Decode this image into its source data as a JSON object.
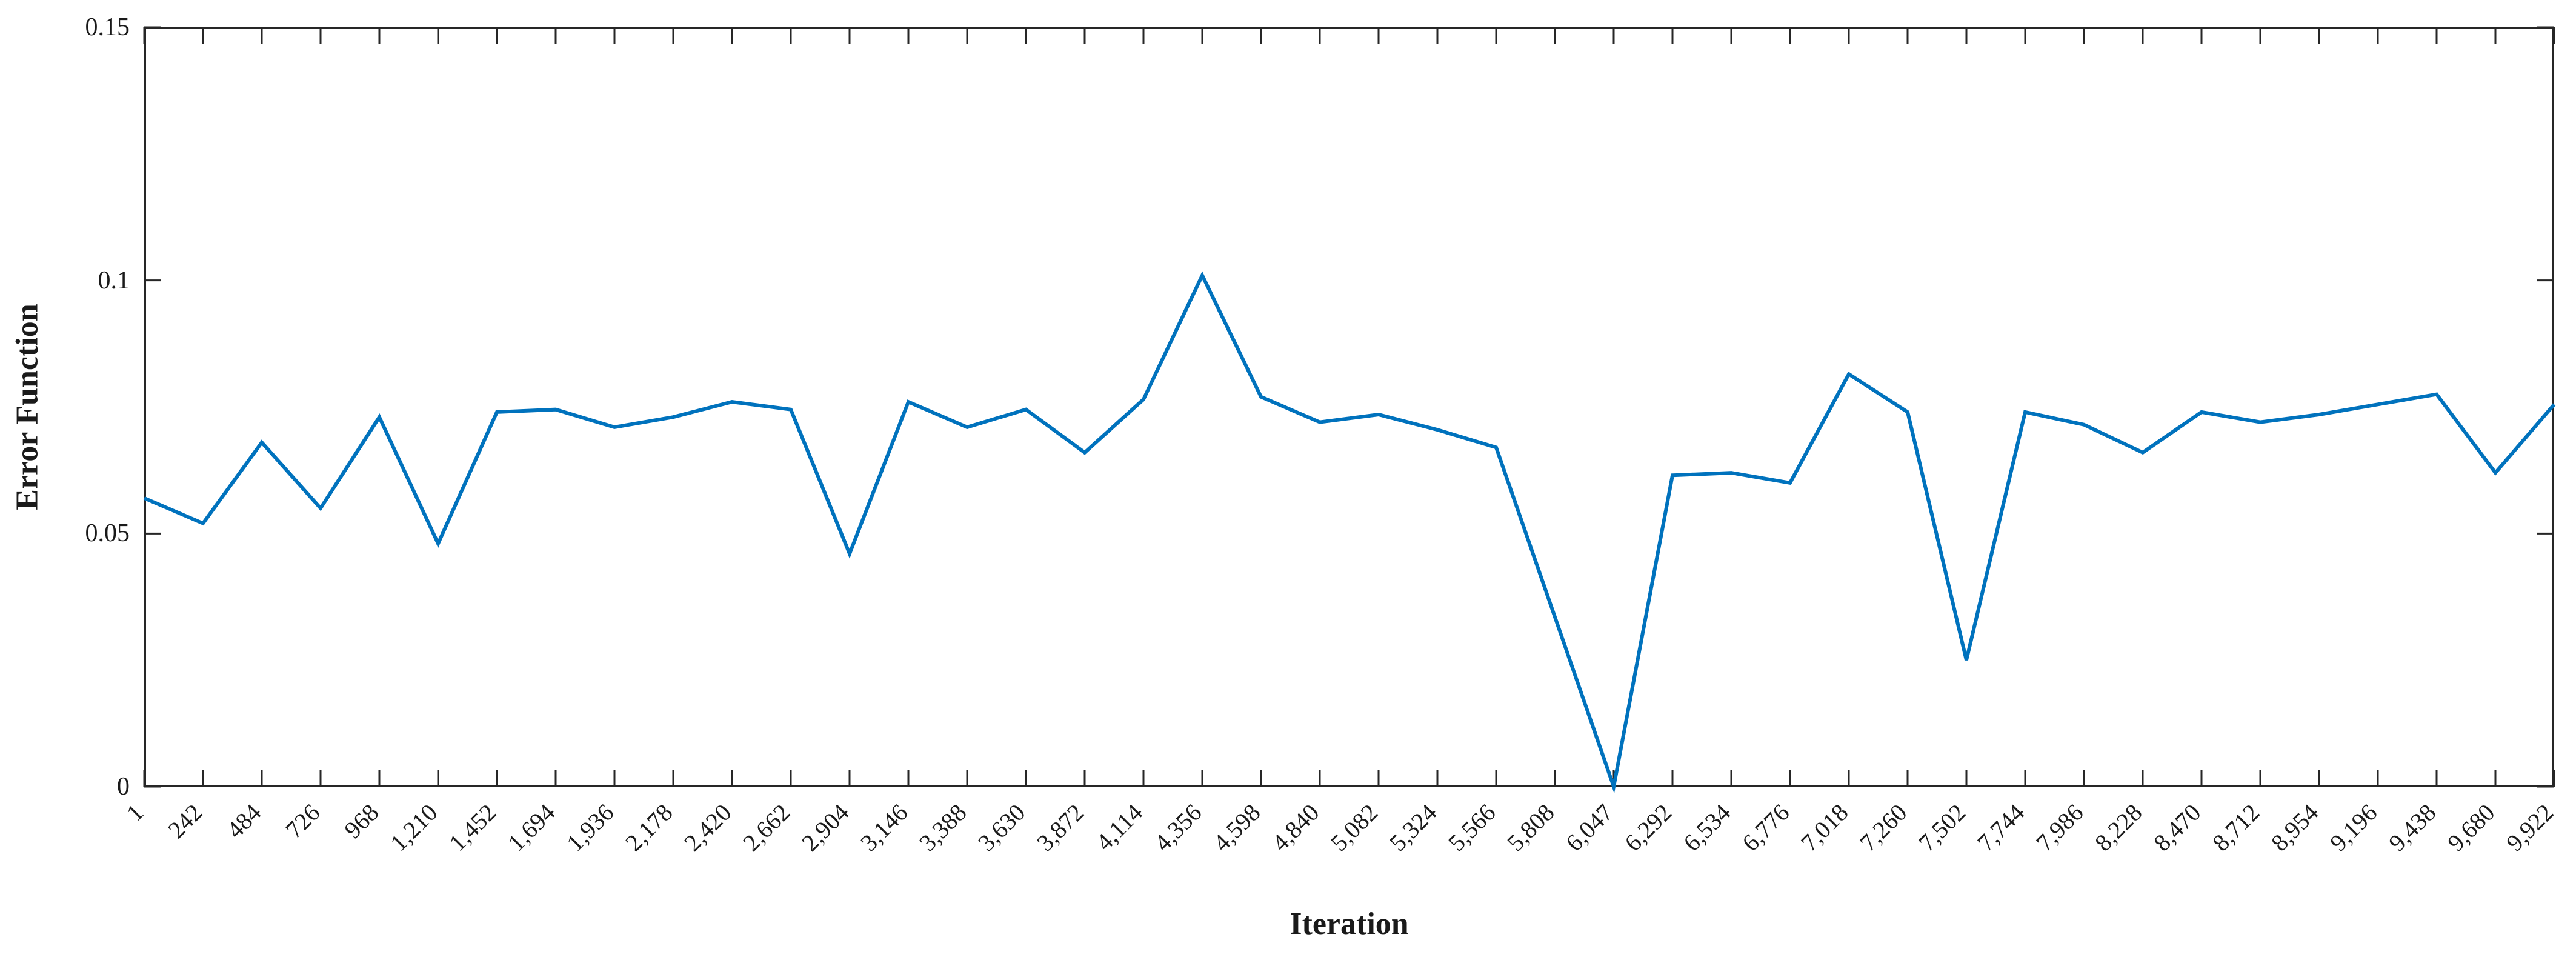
{
  "chart_data": {
    "type": "line",
    "title": "",
    "xlabel": "Iteration",
    "ylabel": "Error Function",
    "categories": [
      "1",
      "242",
      "484",
      "726",
      "968",
      "1,210",
      "1,452",
      "1,694",
      "1,936",
      "2,178",
      "2,420",
      "2,662",
      "2,904",
      "3,146",
      "3,388",
      "3,630",
      "3,872",
      "4,114",
      "4,356",
      "4,598",
      "4,840",
      "5,082",
      "5,324",
      "5,566",
      "5,808",
      "6,047",
      "6,292",
      "6,534",
      "6,776",
      "7,018",
      "7,260",
      "7,502",
      "7,744",
      "7,986",
      "8,228",
      "8,470",
      "8,712",
      "8,954",
      "9,196",
      "9,438",
      "9,680",
      "9,922"
    ],
    "values": [
      0.057,
      0.052,
      0.068,
      0.055,
      0.073,
      0.048,
      0.074,
      0.0745,
      0.071,
      0.073,
      0.076,
      0.0745,
      0.046,
      0.076,
      0.071,
      0.0745,
      0.066,
      0.0765,
      0.101,
      0.077,
      0.072,
      0.0735,
      0.0705,
      0.067,
      0.0335,
      0.0,
      0.0615,
      0.062,
      0.06,
      0.0815,
      0.074,
      0.025,
      0.074,
      0.0715,
      0.066,
      0.074,
      0.072,
      0.0735,
      0.0755,
      0.0775,
      0.062,
      0.0755
    ],
    "ylim": [
      0,
      0.15
    ],
    "yticks": [
      {
        "value": 0,
        "label": "0"
      },
      {
        "value": 0.05,
        "label": "0.05"
      },
      {
        "value": 0.1,
        "label": "0.1"
      },
      {
        "value": 0.15,
        "label": "0.15"
      }
    ],
    "grid": false,
    "legend": null,
    "x_tick_rotation": -45,
    "colors": {
      "line": "#0072BD",
      "axis": "#262626",
      "text": "#1a1a1a"
    }
  }
}
